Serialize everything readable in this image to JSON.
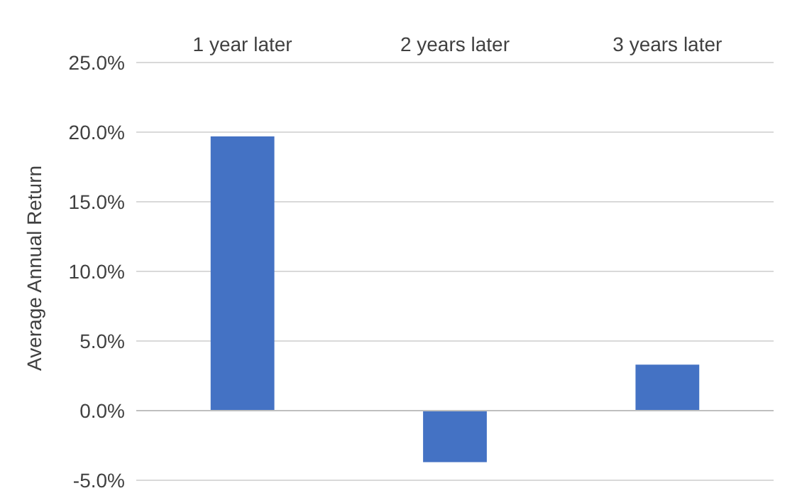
{
  "chart_data": {
    "type": "bar",
    "ylabel": "Average Annual Return",
    "categories": [
      "1 year later",
      "2 years later",
      "3 years later"
    ],
    "values": [
      19.7,
      -3.7,
      3.3
    ],
    "color": "#4472c4",
    "ylim": [
      -5,
      25
    ],
    "yticks": [
      {
        "value": -5,
        "label": "-5.0%"
      },
      {
        "value": 0,
        "label": "0.0%"
      },
      {
        "value": 5,
        "label": "5.0%"
      },
      {
        "value": 10,
        "label": "10.0%"
      },
      {
        "value": 15,
        "label": "15.0%"
      },
      {
        "value": 20,
        "label": "20.0%"
      },
      {
        "value": 25,
        "label": "25.0%"
      }
    ],
    "grid": "y"
  }
}
